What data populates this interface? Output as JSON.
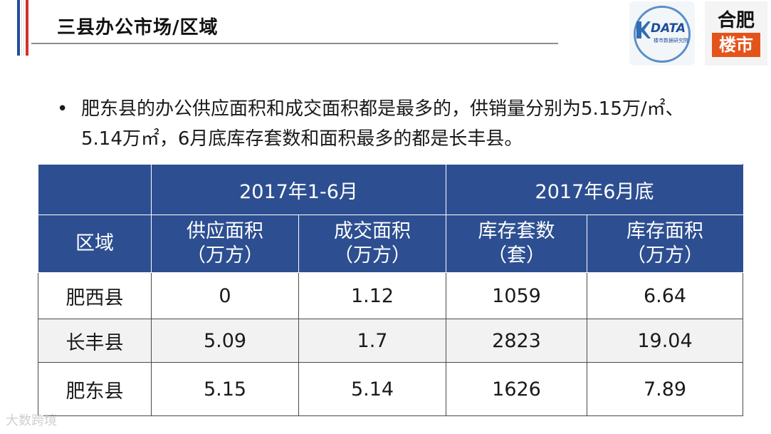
{
  "header": {
    "title": "三县办公市场/区域"
  },
  "logos": {
    "kdata": {
      "name": "DATA",
      "subtitle": "楼市数据研究院"
    },
    "hefei": {
      "top": "合肥",
      "bottom": "楼市"
    }
  },
  "bullet": {
    "symbol": "•",
    "text": "肥东县的办公供应面积和成交面积都是最多的，供销量分别为5.15万/㎡、5.14万㎡，6月底库存套数和面积最多的都是长丰县。"
  },
  "table": {
    "group_headers": [
      "2017年1-6月",
      "2017年6月底"
    ],
    "region_header": "区域",
    "columns": [
      {
        "name": "供应面积",
        "unit": "（万方）"
      },
      {
        "name": "成交面积",
        "unit": "（万方）"
      },
      {
        "name": "库存套数",
        "unit": "（套）"
      },
      {
        "name": "库存面积",
        "unit": "（万方）"
      }
    ],
    "rows": [
      {
        "region": "肥西县",
        "values": [
          "0",
          "1.12",
          "1059",
          "6.64"
        ]
      },
      {
        "region": "长丰县",
        "values": [
          "5.09",
          "1.7",
          "2823",
          "19.04"
        ]
      },
      {
        "region": "肥东县",
        "values": [
          "5.15",
          "5.14",
          "1626",
          "7.89"
        ]
      }
    ]
  },
  "watermark": "大数跨境"
}
